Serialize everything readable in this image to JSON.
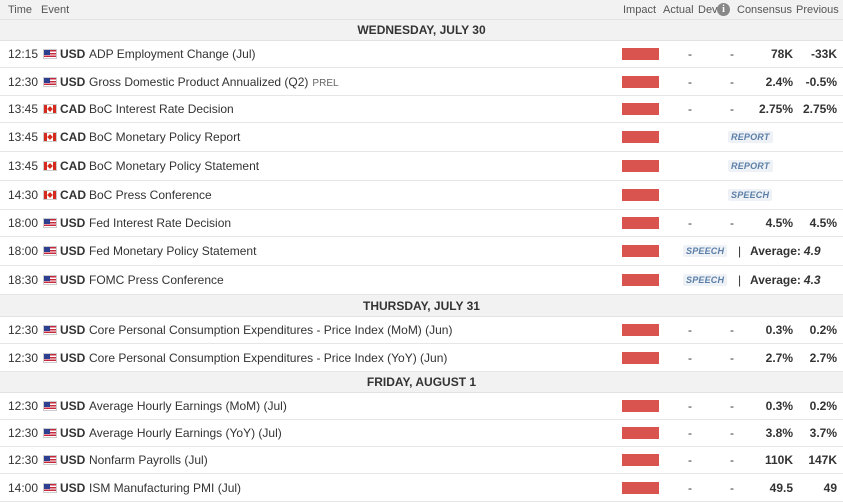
{
  "columns": {
    "time": "Time",
    "event": "Event",
    "impact": "Impact",
    "actual": "Actual",
    "dev": "Dev",
    "info": "i",
    "consensus": "Consensus",
    "previous": "Previous"
  },
  "dates": [
    "WEDNESDAY, JULY 30",
    "THURSDAY, JULY 31",
    "FRIDAY, AUGUST 1"
  ],
  "colors": {
    "impact_high": "#d9534f",
    "tag_text": "#5b7fa8"
  },
  "rows": [
    {
      "time": "12:15",
      "flag": "us-flag-icon",
      "currency": "USD",
      "event": "ADP Employment Change (Jul)",
      "actual": "-",
      "dev": "-",
      "consensus": "78K",
      "previous": "-33K"
    },
    {
      "time": "12:30",
      "flag": "us-flag-icon",
      "currency": "USD",
      "event": "Gross Domestic Product Annualized (Q2)",
      "note": "PREL",
      "actual": "-",
      "dev": "-",
      "consensus": "2.4%",
      "previous": "-0.5%"
    },
    {
      "time": "13:45",
      "flag": "canada-flag-icon",
      "currency": "CAD",
      "event": "BoC Interest Rate Decision",
      "actual": "-",
      "dev": "-",
      "consensus": "2.75%",
      "previous": "2.75%"
    },
    {
      "time": "13:45",
      "flag": "canada-flag-icon",
      "currency": "CAD",
      "event": "BoC Monetary Policy Report",
      "tag": "REPORT"
    },
    {
      "time": "13:45",
      "flag": "canada-flag-icon",
      "currency": "CAD",
      "event": "BoC Monetary Policy Statement",
      "tag": "REPORT"
    },
    {
      "time": "14:30",
      "flag": "canada-flag-icon",
      "currency": "CAD",
      "event": "BoC Press Conference",
      "tag": "SPEECH"
    },
    {
      "time": "18:00",
      "flag": "us-flag-icon",
      "currency": "USD",
      "event": "Fed Interest Rate Decision",
      "actual": "-",
      "dev": "-",
      "consensus": "4.5%",
      "previous": "4.5%"
    },
    {
      "time": "18:00",
      "flag": "us-flag-icon",
      "currency": "USD",
      "event": "Fed Monetary Policy Statement",
      "tag": "SPEECH",
      "pipe": "|",
      "avg_label": "Average:",
      "avg_value": "4.9"
    },
    {
      "time": "18:30",
      "flag": "us-flag-icon",
      "currency": "USD",
      "event": "FOMC Press Conference",
      "tag": "SPEECH",
      "pipe": "|",
      "avg_label": "Average:",
      "avg_value": "4.3"
    },
    {
      "time": "12:30",
      "flag": "us-flag-icon",
      "currency": "USD",
      "event": "Core Personal Consumption Expenditures - Price Index (MoM) (Jun)",
      "actual": "-",
      "dev": "-",
      "consensus": "0.3%",
      "previous": "0.2%"
    },
    {
      "time": "12:30",
      "flag": "us-flag-icon",
      "currency": "USD",
      "event": "Core Personal Consumption Expenditures - Price Index (YoY) (Jun)",
      "actual": "-",
      "dev": "-",
      "consensus": "2.7%",
      "previous": "2.7%"
    },
    {
      "time": "12:30",
      "flag": "us-flag-icon",
      "currency": "USD",
      "event": "Average Hourly Earnings (MoM) (Jul)",
      "actual": "-",
      "dev": "-",
      "consensus": "0.3%",
      "previous": "0.2%"
    },
    {
      "time": "12:30",
      "flag": "us-flag-icon",
      "currency": "USD",
      "event": "Average Hourly Earnings (YoY) (Jul)",
      "actual": "-",
      "dev": "-",
      "consensus": "3.8%",
      "previous": "3.7%"
    },
    {
      "time": "12:30",
      "flag": "us-flag-icon",
      "currency": "USD",
      "event": "Nonfarm Payrolls (Jul)",
      "actual": "-",
      "dev": "-",
      "consensus": "110K",
      "previous": "147K"
    },
    {
      "time": "14:00",
      "flag": "us-flag-icon",
      "currency": "USD",
      "event": "ISM Manufacturing PMI (Jul)",
      "actual": "-",
      "dev": "-",
      "consensus": "49.5",
      "previous": "49"
    }
  ]
}
